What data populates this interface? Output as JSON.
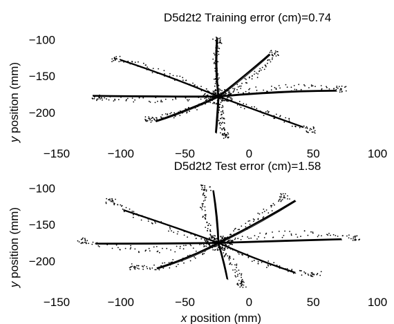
{
  "chart_data": [
    {
      "type": "scatter",
      "title": "D5d2t2 Training error (cm)=0.74",
      "xlabel": "",
      "ylabel_italic": "y",
      "ylabel_rest": " position (mm)",
      "xlim": [
        -150,
        100
      ],
      "ylim": [
        -240,
        -95
      ],
      "xticks": [
        -150,
        -100,
        -50,
        0,
        50,
        100
      ],
      "yticks": [
        -100,
        -150,
        -200
      ],
      "y_inverted": true,
      "center": [
        -24,
        -178
      ],
      "series": [
        {
          "style": "solid-line",
          "reaches": [
            {
              "end": [
                -25,
                -97
              ],
              "ctrl": [
                -27,
                -135
              ]
            },
            {
              "end": [
                16,
                -120
              ],
              "ctrl": [
                -5,
                -152
              ]
            },
            {
              "end": [
                68,
                -170
              ],
              "ctrl": [
                22,
                -170
              ]
            },
            {
              "end": [
                42,
                -220
              ],
              "ctrl": [
                10,
                -200
              ]
            },
            {
              "end": [
                -26,
                -228
              ],
              "ctrl": [
                -25,
                -205
              ]
            },
            {
              "end": [
                -73,
                -212
              ],
              "ctrl": [
                -48,
                -197
              ]
            },
            {
              "end": [
                -122,
                -177
              ],
              "ctrl": [
                -75,
                -178
              ]
            },
            {
              "end": [
                -100,
                -128
              ],
              "ctrl": [
                -62,
                -150
              ]
            }
          ]
        },
        {
          "style": "dotted",
          "reaches": [
            {
              "end": [
                -24,
                -101
              ],
              "ctrl": [
                -28,
                -140
              ]
            },
            {
              "end": [
                20,
                -119
              ],
              "ctrl": [
                2,
                -160
              ]
            },
            {
              "end": [
                72,
                -168
              ],
              "ctrl": [
                25,
                -160
              ]
            },
            {
              "end": [
                48,
                -224
              ],
              "ctrl": [
                18,
                -205
              ]
            },
            {
              "end": [
                -20,
                -232
              ],
              "ctrl": [
                -22,
                -205
              ]
            },
            {
              "end": [
                -78,
                -210
              ],
              "ctrl": [
                -52,
                -205
              ]
            },
            {
              "end": [
                -118,
                -180
              ],
              "ctrl": [
                -72,
                -185
              ]
            },
            {
              "end": [
                -104,
                -127
              ],
              "ctrl": [
                -66,
                -140
              ]
            }
          ]
        }
      ]
    },
    {
      "type": "scatter",
      "title": "D5d2t2 Test error (cm)=1.58",
      "xlabel_italic": "x",
      "xlabel_rest": " position (mm)",
      "ylabel_italic": "y",
      "ylabel_rest": " position (mm)",
      "xlim": [
        -150,
        100
      ],
      "ylim": [
        -240,
        -95
      ],
      "xticks": [
        -150,
        -100,
        -50,
        0,
        50,
        100
      ],
      "yticks": [
        -100,
        -150,
        -200
      ],
      "y_inverted": true,
      "center": [
        -24,
        -175
      ],
      "series": [
        {
          "style": "solid-line",
          "reaches": [
            {
              "end": [
                -28,
                -103
              ],
              "ctrl": [
                -25,
                -140
              ]
            },
            {
              "end": [
                36,
                -117
              ],
              "ctrl": [
                5,
                -150
              ]
            },
            {
              "end": [
                72,
                -170
              ],
              "ctrl": [
                25,
                -172
              ]
            },
            {
              "end": [
                36,
                -216
              ],
              "ctrl": [
                5,
                -198
              ]
            },
            {
              "end": [
                -17,
                -225
              ],
              "ctrl": [
                -20,
                -200
              ]
            },
            {
              "end": [
                -72,
                -210
              ],
              "ctrl": [
                -45,
                -195
              ]
            },
            {
              "end": [
                -120,
                -176
              ],
              "ctrl": [
                -70,
                -176
              ]
            },
            {
              "end": [
                -98,
                -130
              ],
              "ctrl": [
                -60,
                -152
              ]
            }
          ]
        },
        {
          "style": "dotted",
          "reaches": [
            {
              "end": [
                -34,
                -100
              ],
              "ctrl": [
                -40,
                -145
              ]
            },
            {
              "end": [
                28,
                -112
              ],
              "ctrl": [
                0,
                -150
              ]
            },
            {
              "end": [
                82,
                -168
              ],
              "ctrl": [
                30,
                -155
              ]
            },
            {
              "end": [
                52,
                -218
              ],
              "ctrl": [
                20,
                -215
              ]
            },
            {
              "end": [
                -5,
                -232
              ],
              "ctrl": [
                -10,
                -210
              ]
            },
            {
              "end": [
                -90,
                -208
              ],
              "ctrl": [
                -60,
                -215
              ]
            },
            {
              "end": [
                -130,
                -172
              ],
              "ctrl": [
                -80,
                -195
              ]
            },
            {
              "end": [
                -108,
                -118
              ],
              "ctrl": [
                -80,
                -150
              ]
            }
          ]
        }
      ]
    }
  ]
}
